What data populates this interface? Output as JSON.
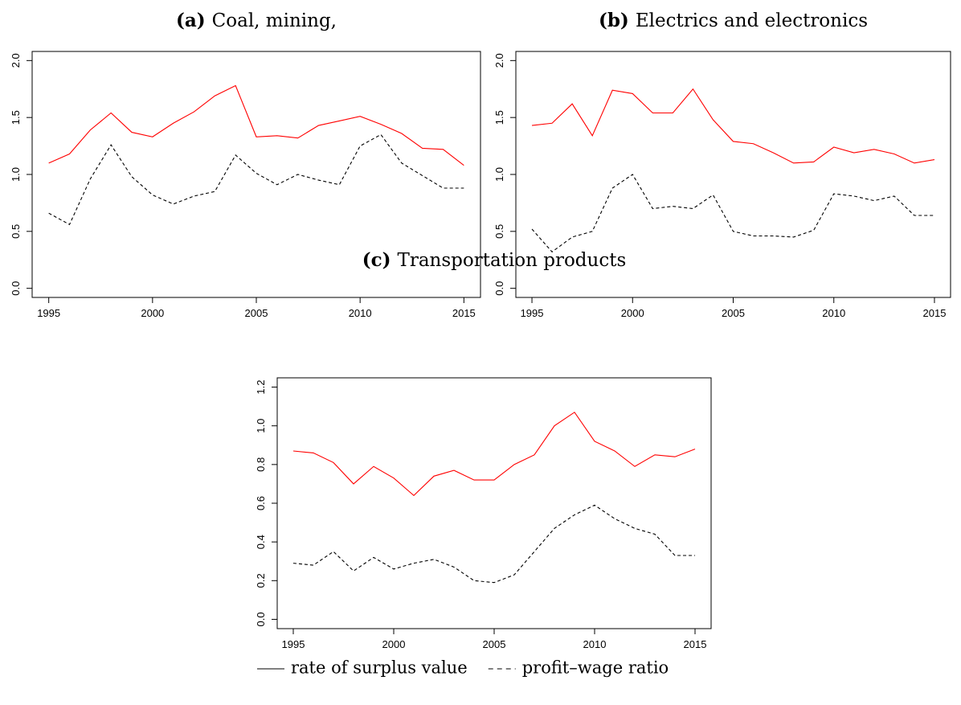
{
  "chart_data": [
    {
      "type": "line",
      "label": "(a)",
      "title": "Coal, mining,",
      "x": [
        1995,
        1996,
        1997,
        1998,
        1999,
        2000,
        2001,
        2002,
        2003,
        2004,
        2005,
        2006,
        2007,
        2008,
        2009,
        2010,
        2011,
        2012,
        2013,
        2014,
        2015
      ],
      "series": [
        {
          "name": "rate of surplus value",
          "color": "#ff0000",
          "line_style": "solid",
          "values": [
            1.1,
            1.18,
            1.39,
            1.54,
            1.37,
            1.33,
            1.45,
            1.55,
            1.69,
            1.78,
            1.33,
            1.34,
            1.32,
            1.43,
            1.47,
            1.51,
            1.44,
            1.36,
            1.23,
            1.22,
            1.08
          ]
        },
        {
          "name": "profit–wage ratio",
          "color": "#000000",
          "line_style": "dashed",
          "values": [
            0.66,
            0.56,
            0.96,
            1.26,
            0.98,
            0.82,
            0.74,
            0.81,
            0.85,
            1.17,
            1.01,
            0.91,
            1.0,
            0.95,
            0.91,
            1.25,
            1.35,
            1.1,
            0.99,
            0.88,
            0.88
          ]
        }
      ],
      "xlim": [
        1994.2,
        2015.8
      ],
      "xticks": [
        1995,
        2000,
        2005,
        2010,
        2015
      ],
      "ylim": [
        -0.08,
        2.08
      ],
      "yticks": [
        {
          "value": 0,
          "label": "0.0"
        },
        {
          "value": 0.5,
          "label": "0.5"
        },
        {
          "value": 1,
          "label": "1.0"
        },
        {
          "value": 1.5,
          "label": "1.5"
        },
        {
          "value": 2,
          "label": "2.0"
        }
      ]
    },
    {
      "type": "line",
      "label": "(b)",
      "title": "Electrics and electronics",
      "x": [
        1995,
        1996,
        1997,
        1998,
        1999,
        2000,
        2001,
        2002,
        2003,
        2004,
        2005,
        2006,
        2007,
        2008,
        2009,
        2010,
        2011,
        2012,
        2013,
        2014,
        2015
      ],
      "series": [
        {
          "color": "#ff0000",
          "line_style": "solid",
          "values": [
            1.43,
            1.45,
            1.62,
            1.34,
            1.74,
            1.71,
            1.54,
            1.54,
            1.75,
            1.48,
            1.29,
            1.27,
            1.19,
            1.1,
            1.11,
            1.24,
            1.19,
            1.22,
            1.18,
            1.1,
            1.13
          ]
        },
        {
          "color": "#000000",
          "line_style": "dashed",
          "values": [
            0.52,
            0.32,
            0.45,
            0.5,
            0.88,
            1.0,
            0.7,
            0.72,
            0.7,
            0.82,
            0.5,
            0.46,
            0.46,
            0.45,
            0.51,
            0.83,
            0.81,
            0.77,
            0.81,
            0.64,
            0.64
          ]
        }
      ],
      "xlim": [
        1994.2,
        2015.8
      ],
      "xticks": [
        1995,
        2000,
        2005,
        2010,
        2015
      ],
      "ylim": [
        -0.08,
        2.08
      ],
      "yticks": [
        {
          "value": 0,
          "label": "0.0"
        },
        {
          "value": 0.5,
          "label": "0.5"
        },
        {
          "value": 1,
          "label": "1.0"
        },
        {
          "value": 1.5,
          "label": "1.5"
        },
        {
          "value": 2,
          "label": "2.0"
        }
      ]
    },
    {
      "type": "line",
      "label": "(c)",
      "title": "Transportation products",
      "x": [
        1995,
        1996,
        1997,
        1998,
        1999,
        2000,
        2001,
        2002,
        2003,
        2004,
        2005,
        2006,
        2007,
        2008,
        2009,
        2010,
        2011,
        2012,
        2013,
        2014,
        2015
      ],
      "series": [
        {
          "color": "#ff0000",
          "line_style": "solid",
          "values": [
            0.87,
            0.86,
            0.81,
            0.7,
            0.79,
            0.73,
            0.64,
            0.74,
            0.77,
            0.72,
            0.72,
            0.8,
            0.85,
            1.0,
            1.07,
            0.92,
            0.87,
            0.79,
            0.85,
            0.84,
            0.88
          ]
        },
        {
          "color": "#000000",
          "line_style": "dashed",
          "values": [
            0.29,
            0.28,
            0.35,
            0.25,
            0.32,
            0.26,
            0.29,
            0.31,
            0.27,
            0.2,
            0.19,
            0.23,
            0.35,
            0.47,
            0.54,
            0.59,
            0.52,
            0.47,
            0.44,
            0.33,
            0.33
          ]
        }
      ],
      "xlim": [
        1994.2,
        2015.8
      ],
      "xticks": [
        1995,
        2000,
        2005,
        2010,
        2015
      ],
      "ylim": [
        -0.048,
        1.248
      ],
      "yticks": [
        {
          "value": 0,
          "label": "0.0"
        },
        {
          "value": 0.2,
          "label": "0.2"
        },
        {
          "value": 0.4,
          "label": "0.4"
        },
        {
          "value": 0.6,
          "label": "0.6"
        },
        {
          "value": 0.8,
          "label": "0.8"
        },
        {
          "value": 1,
          "label": "1.0"
        },
        {
          "value": 1.2,
          "label": "1.2"
        }
      ]
    }
  ]
}
